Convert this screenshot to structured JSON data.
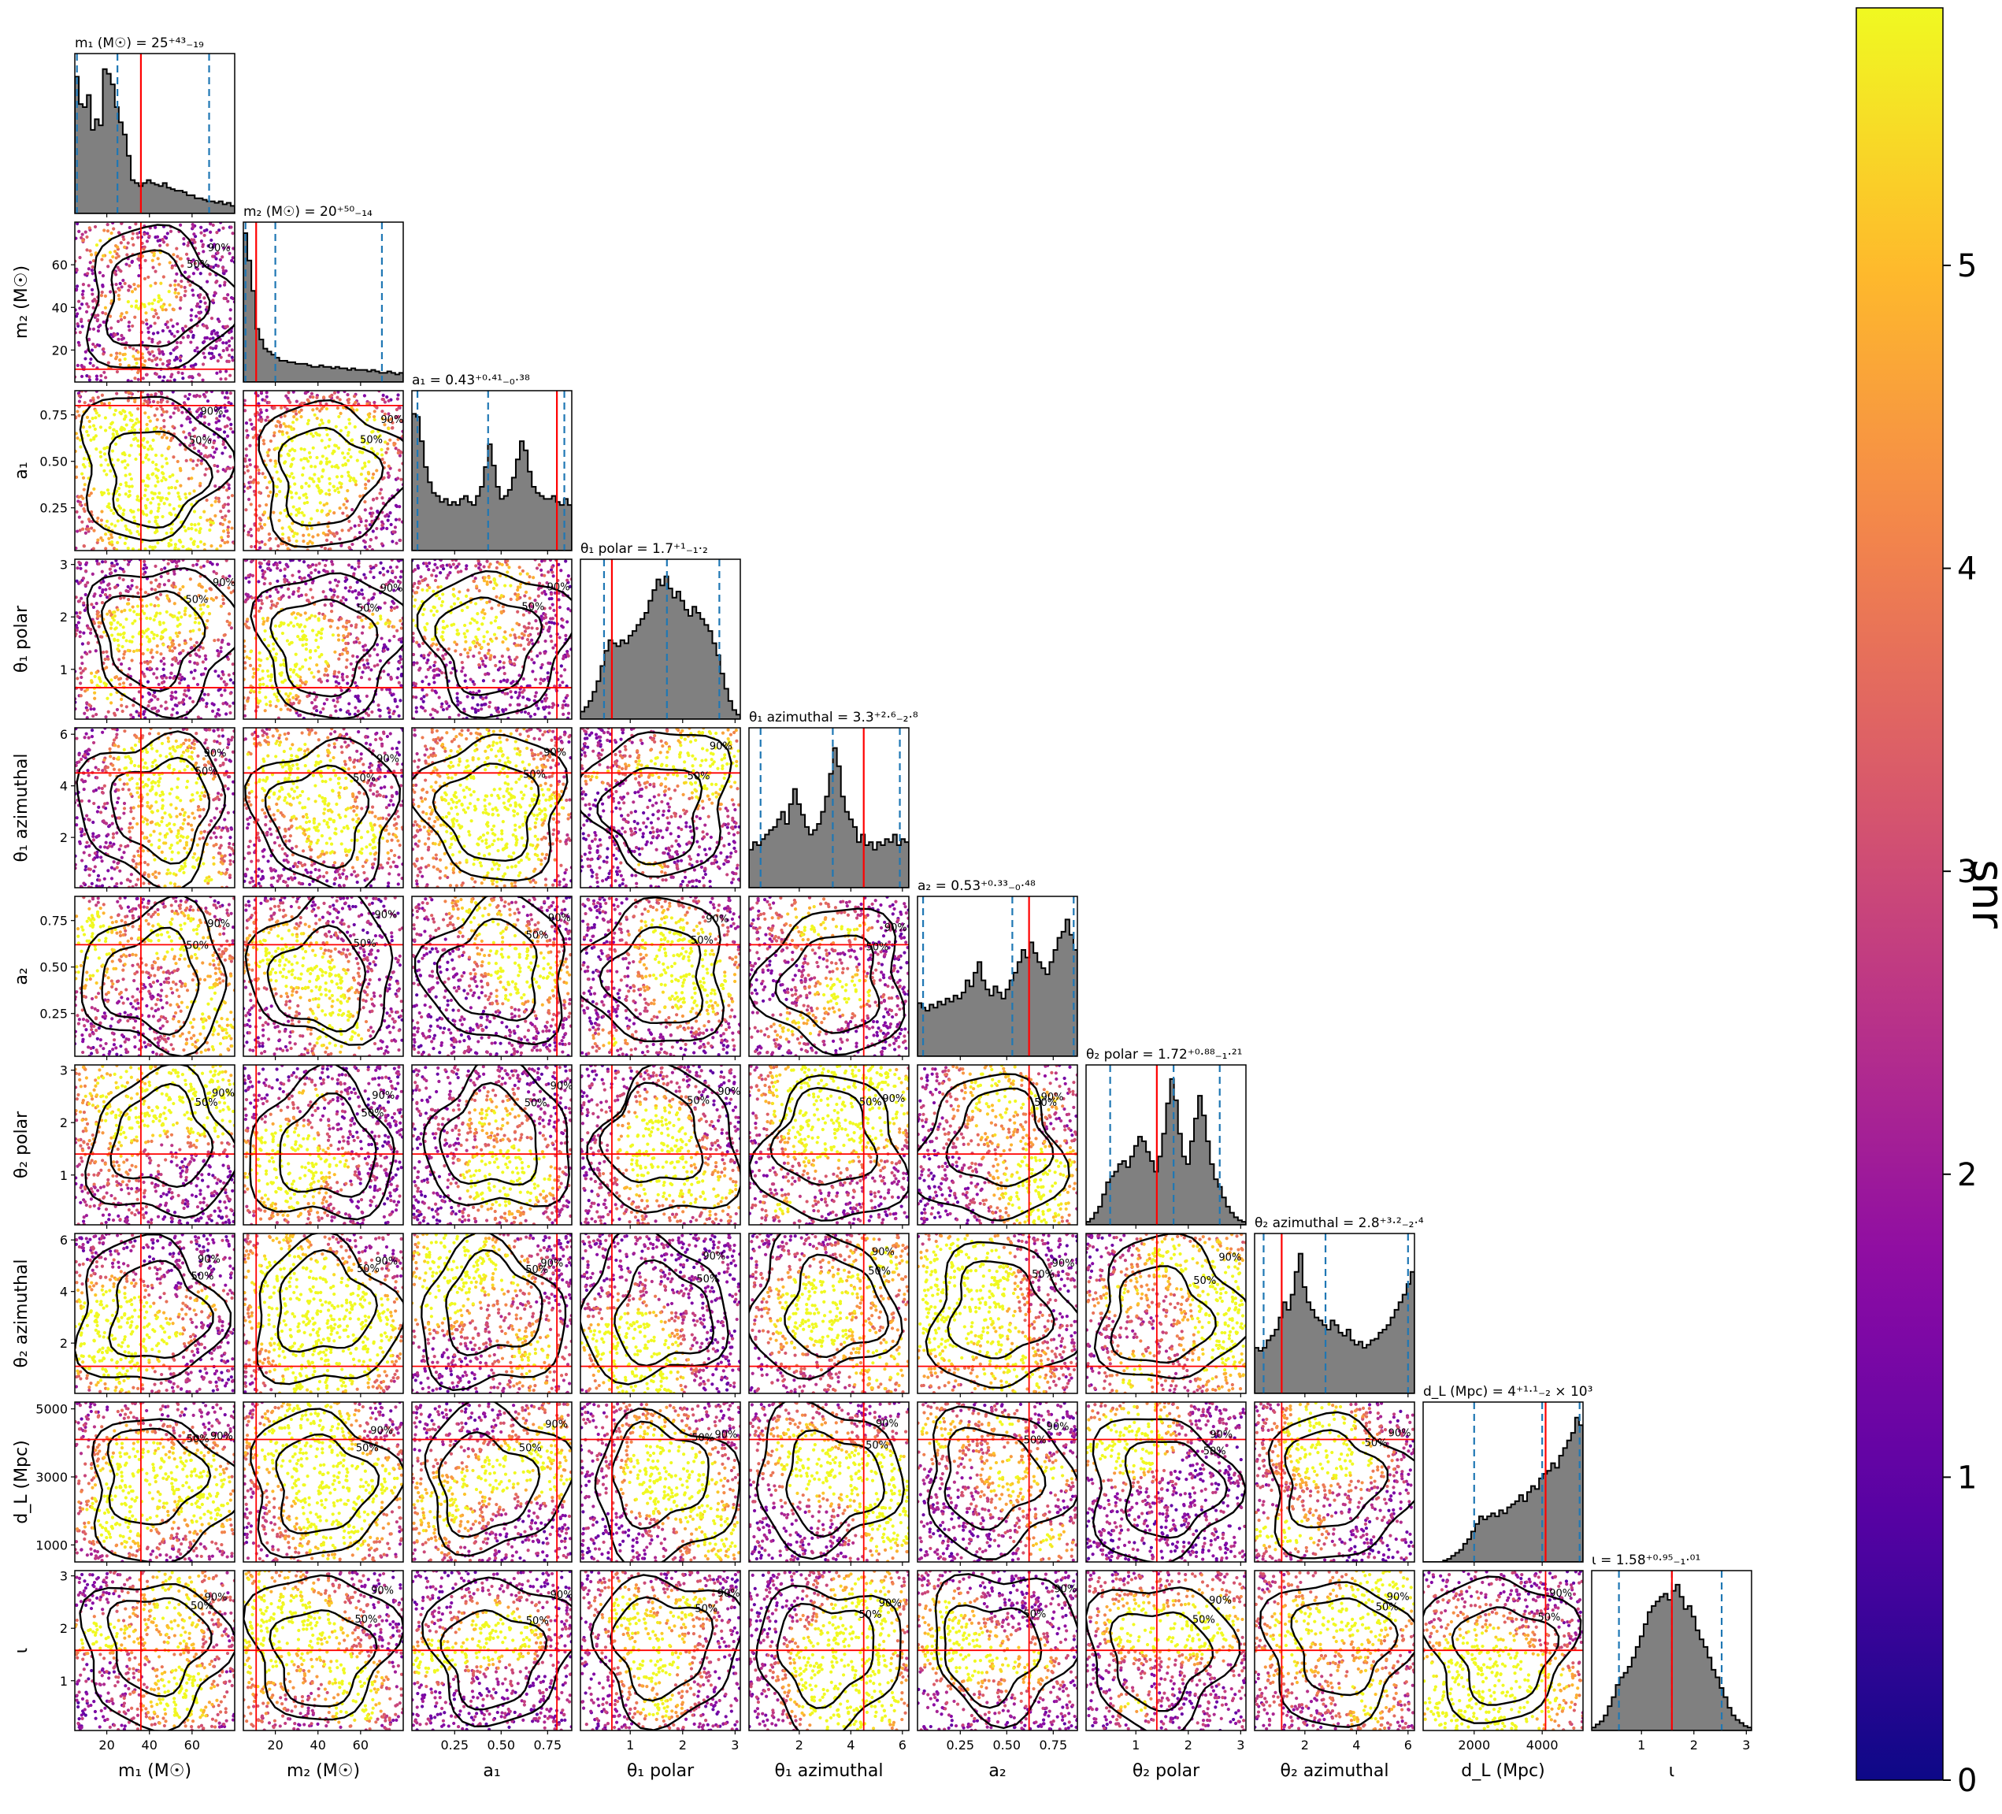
{
  "chart_data": {
    "type": "scatter",
    "figure": "corner-plot",
    "parameters": [
      {
        "key": "m1",
        "axis_label": "m₁ (M☉)",
        "title": "m₁ (M☉) = 25⁺⁴³₋₁₉",
        "range": [
          5,
          80
        ],
        "ticks": [
          20,
          40,
          60
        ],
        "tick_labels": [
          "20",
          "40",
          "60"
        ],
        "median": 25,
        "lower": 6,
        "upper": 68,
        "injected": 36
      },
      {
        "key": "m2",
        "axis_label": "m₂ (M☉)",
        "title": "m₂ (M☉) = 20⁺⁵⁰₋₁₄",
        "range": [
          5,
          80
        ],
        "ticks": [
          20,
          40,
          60
        ],
        "tick_labels": [
          "20",
          "40",
          "60"
        ],
        "median": 20,
        "lower": 6,
        "upper": 70,
        "injected": 11
      },
      {
        "key": "a1",
        "axis_label": "a₁",
        "title": "a₁ = 0.43⁺⁰·⁴¹₋₀·³⁸",
        "range": [
          0.02,
          0.88
        ],
        "ticks": [
          0.25,
          0.5,
          0.75
        ],
        "tick_labels": [
          "0.25",
          "0.50",
          "0.75"
        ],
        "median": 0.43,
        "lower": 0.05,
        "upper": 0.84,
        "injected": 0.8
      },
      {
        "key": "theta1_polar",
        "axis_label": "θ₁ polar",
        "title": "θ₁ polar = 1.7⁺¹₋₁·₂",
        "range": [
          0.05,
          3.1
        ],
        "ticks": [
          1,
          2,
          3
        ],
        "tick_labels": [
          "1",
          "2",
          "3"
        ],
        "median": 1.7,
        "lower": 0.5,
        "upper": 2.7,
        "injected": 0.65
      },
      {
        "key": "theta1_azimuthal",
        "axis_label": "θ₁ azimuthal",
        "title": "θ₁ azimuthal = 3.3⁺²·⁶₋₂·⁸",
        "range": [
          0.05,
          6.25
        ],
        "ticks": [
          2,
          4,
          6
        ],
        "tick_labels": [
          "2",
          "4",
          "6"
        ],
        "median": 3.3,
        "lower": 0.5,
        "upper": 5.9,
        "injected": 4.5
      },
      {
        "key": "a2",
        "axis_label": "a₂",
        "title": "a₂ = 0.53⁺⁰·³³₋₀·⁴⁸",
        "range": [
          0.02,
          0.88
        ],
        "ticks": [
          0.25,
          0.5,
          0.75
        ],
        "tick_labels": [
          "0.25",
          "0.50",
          "0.75"
        ],
        "median": 0.53,
        "lower": 0.05,
        "upper": 0.86,
        "injected": 0.62
      },
      {
        "key": "theta2_polar",
        "axis_label": "θ₂ polar",
        "title": "θ₂ polar = 1.72⁺⁰·⁸⁸₋₁·²¹",
        "range": [
          0.05,
          3.1
        ],
        "ticks": [
          1,
          2,
          3
        ],
        "tick_labels": [
          "1",
          "2",
          "3"
        ],
        "median": 1.72,
        "lower": 0.51,
        "upper": 2.6,
        "injected": 1.4
      },
      {
        "key": "theta2_azimuthal",
        "axis_label": "θ₂ azimuthal",
        "title": "θ₂ azimuthal = 2.8⁺³·²₋₂·⁴",
        "range": [
          0.05,
          6.25
        ],
        "ticks": [
          2,
          4,
          6
        ],
        "tick_labels": [
          "2",
          "4",
          "6"
        ],
        "median": 2.8,
        "lower": 0.4,
        "upper": 6.0,
        "injected": 1.1
      },
      {
        "key": "dL",
        "axis_label": "d_L (Mpc)",
        "title": "d_L (Mpc) = 4⁺¹·¹₋₂ × 10³",
        "range": [
          500,
          5200
        ],
        "ticks": [
          2000,
          4000
        ],
        "tick_labels": [
          "2000",
          "4000"
        ],
        "y_ticks": [
          1000,
          3000,
          5000
        ],
        "y_tick_labels": [
          "1000",
          "3000",
          "5000"
        ],
        "median": 4000,
        "lower": 2000,
        "upper": 5100,
        "injected": 4100
      },
      {
        "key": "iota",
        "axis_label": "ι",
        "title": "ι = 1.58⁺⁰·⁹⁵₋₁·⁰¹",
        "range": [
          0.05,
          3.1
        ],
        "ticks": [
          1,
          2,
          3
        ],
        "tick_labels": [
          "1",
          "2",
          "3"
        ],
        "median": 1.58,
        "lower": 0.57,
        "upper": 2.53,
        "injected": 1.58
      }
    ],
    "histogram_profiles": [
      [
        0.9,
        0.72,
        0.7,
        0.78,
        0.55,
        0.62,
        0.58,
        0.95,
        0.92,
        0.85,
        0.7,
        0.6,
        0.52,
        0.38,
        0.22,
        0.2,
        0.18,
        0.2,
        0.22,
        0.2,
        0.19,
        0.18,
        0.2,
        0.17,
        0.16,
        0.15,
        0.15,
        0.14,
        0.12,
        0.12,
        0.1,
        0.1,
        0.09,
        0.08,
        0.08,
        0.07,
        0.08,
        0.06,
        0.07,
        0.05
      ],
      [
        0.98,
        0.8,
        0.6,
        0.35,
        0.28,
        0.22,
        0.2,
        0.18,
        0.16,
        0.14,
        0.14,
        0.13,
        0.13,
        0.12,
        0.12,
        0.12,
        0.11,
        0.1,
        0.1,
        0.11,
        0.1,
        0.1,
        0.09,
        0.1,
        0.09,
        0.09,
        0.08,
        0.09,
        0.08,
        0.08,
        0.08,
        0.07,
        0.08,
        0.07,
        0.06,
        0.06,
        0.07,
        0.06,
        0.05,
        0.06
      ],
      [
        0.9,
        0.88,
        0.72,
        0.55,
        0.45,
        0.38,
        0.36,
        0.32,
        0.34,
        0.3,
        0.32,
        0.3,
        0.34,
        0.36,
        0.32,
        0.3,
        0.36,
        0.42,
        0.55,
        0.7,
        0.56,
        0.42,
        0.34,
        0.36,
        0.4,
        0.48,
        0.6,
        0.72,
        0.66,
        0.52,
        0.42,
        0.38,
        0.36,
        0.34,
        0.34,
        0.36,
        0.32,
        0.3,
        0.34,
        0.3
      ],
      [
        0.05,
        0.08,
        0.12,
        0.18,
        0.25,
        0.35,
        0.45,
        0.52,
        0.5,
        0.48,
        0.52,
        0.5,
        0.55,
        0.58,
        0.62,
        0.66,
        0.7,
        0.78,
        0.85,
        0.92,
        0.88,
        0.94,
        0.86,
        0.8,
        0.84,
        0.78,
        0.72,
        0.68,
        0.74,
        0.7,
        0.66,
        0.62,
        0.58,
        0.5,
        0.42,
        0.3,
        0.2,
        0.12,
        0.06,
        0.03
      ],
      [
        0.25,
        0.3,
        0.28,
        0.32,
        0.35,
        0.38,
        0.4,
        0.45,
        0.5,
        0.42,
        0.55,
        0.65,
        0.55,
        0.48,
        0.4,
        0.35,
        0.38,
        0.42,
        0.5,
        0.6,
        0.75,
        0.92,
        0.8,
        0.6,
        0.5,
        0.45,
        0.4,
        0.3,
        0.35,
        0.28,
        0.3,
        0.25,
        0.3,
        0.28,
        0.32,
        0.3,
        0.35,
        0.28,
        0.32,
        0.3
      ],
      [
        0.35,
        0.32,
        0.3,
        0.34,
        0.32,
        0.36,
        0.34,
        0.38,
        0.36,
        0.4,
        0.38,
        0.42,
        0.5,
        0.46,
        0.55,
        0.62,
        0.5,
        0.44,
        0.4,
        0.46,
        0.42,
        0.38,
        0.44,
        0.5,
        0.55,
        0.62,
        0.7,
        0.65,
        0.75,
        0.68,
        0.62,
        0.58,
        0.54,
        0.62,
        0.7,
        0.78,
        0.82,
        0.9,
        0.8,
        0.7
      ],
      [
        0.02,
        0.04,
        0.08,
        0.12,
        0.2,
        0.28,
        0.32,
        0.35,
        0.4,
        0.42,
        0.38,
        0.45,
        0.52,
        0.58,
        0.55,
        0.48,
        0.42,
        0.35,
        0.45,
        0.6,
        0.8,
        0.96,
        0.82,
        0.6,
        0.45,
        0.4,
        0.55,
        0.7,
        0.85,
        0.72,
        0.55,
        0.4,
        0.3,
        0.25,
        0.18,
        0.12,
        0.08,
        0.05,
        0.03,
        0.02
      ],
      [
        0.3,
        0.28,
        0.3,
        0.35,
        0.38,
        0.42,
        0.5,
        0.6,
        0.55,
        0.65,
        0.8,
        0.92,
        0.7,
        0.6,
        0.55,
        0.5,
        0.48,
        0.45,
        0.42,
        0.48,
        0.45,
        0.4,
        0.38,
        0.42,
        0.35,
        0.32,
        0.34,
        0.3,
        0.32,
        0.35,
        0.36,
        0.4,
        0.42,
        0.45,
        0.5,
        0.55,
        0.6,
        0.65,
        0.72,
        0.8
      ],
      [
        0.0,
        0.0,
        0.0,
        0.0,
        0.0,
        0.01,
        0.02,
        0.04,
        0.06,
        0.08,
        0.12,
        0.15,
        0.2,
        0.25,
        0.3,
        0.28,
        0.3,
        0.32,
        0.3,
        0.34,
        0.32,
        0.36,
        0.38,
        0.4,
        0.44,
        0.4,
        0.46,
        0.5,
        0.48,
        0.55,
        0.58,
        0.6,
        0.65,
        0.62,
        0.7,
        0.75,
        0.8,
        0.85,
        0.95,
        0.9
      ],
      [
        0.02,
        0.04,
        0.06,
        0.1,
        0.16,
        0.22,
        0.3,
        0.35,
        0.38,
        0.42,
        0.48,
        0.55,
        0.62,
        0.7,
        0.78,
        0.82,
        0.85,
        0.88,
        0.9,
        0.86,
        0.92,
        0.96,
        0.88,
        0.8,
        0.82,
        0.75,
        0.66,
        0.6,
        0.55,
        0.48,
        0.4,
        0.35,
        0.28,
        0.22,
        0.15,
        0.1,
        0.07,
        0.05,
        0.03,
        0.02
      ]
    ],
    "contour_labels": [
      "50%",
      "90%"
    ],
    "colorbar": {
      "label": "snr",
      "range": [
        0,
        5.85
      ],
      "ticks": [
        0,
        1,
        2,
        3,
        4,
        5
      ],
      "tick_labels": [
        "0",
        "1",
        "2",
        "3",
        "4",
        "5"
      ],
      "colormap": "plasma"
    },
    "colors": {
      "histogram_fill": "#808080",
      "histogram_edge": "#000000",
      "quantile_line": "#1f77b4",
      "injection_line": "#ff0000",
      "contour": "#000000"
    }
  }
}
